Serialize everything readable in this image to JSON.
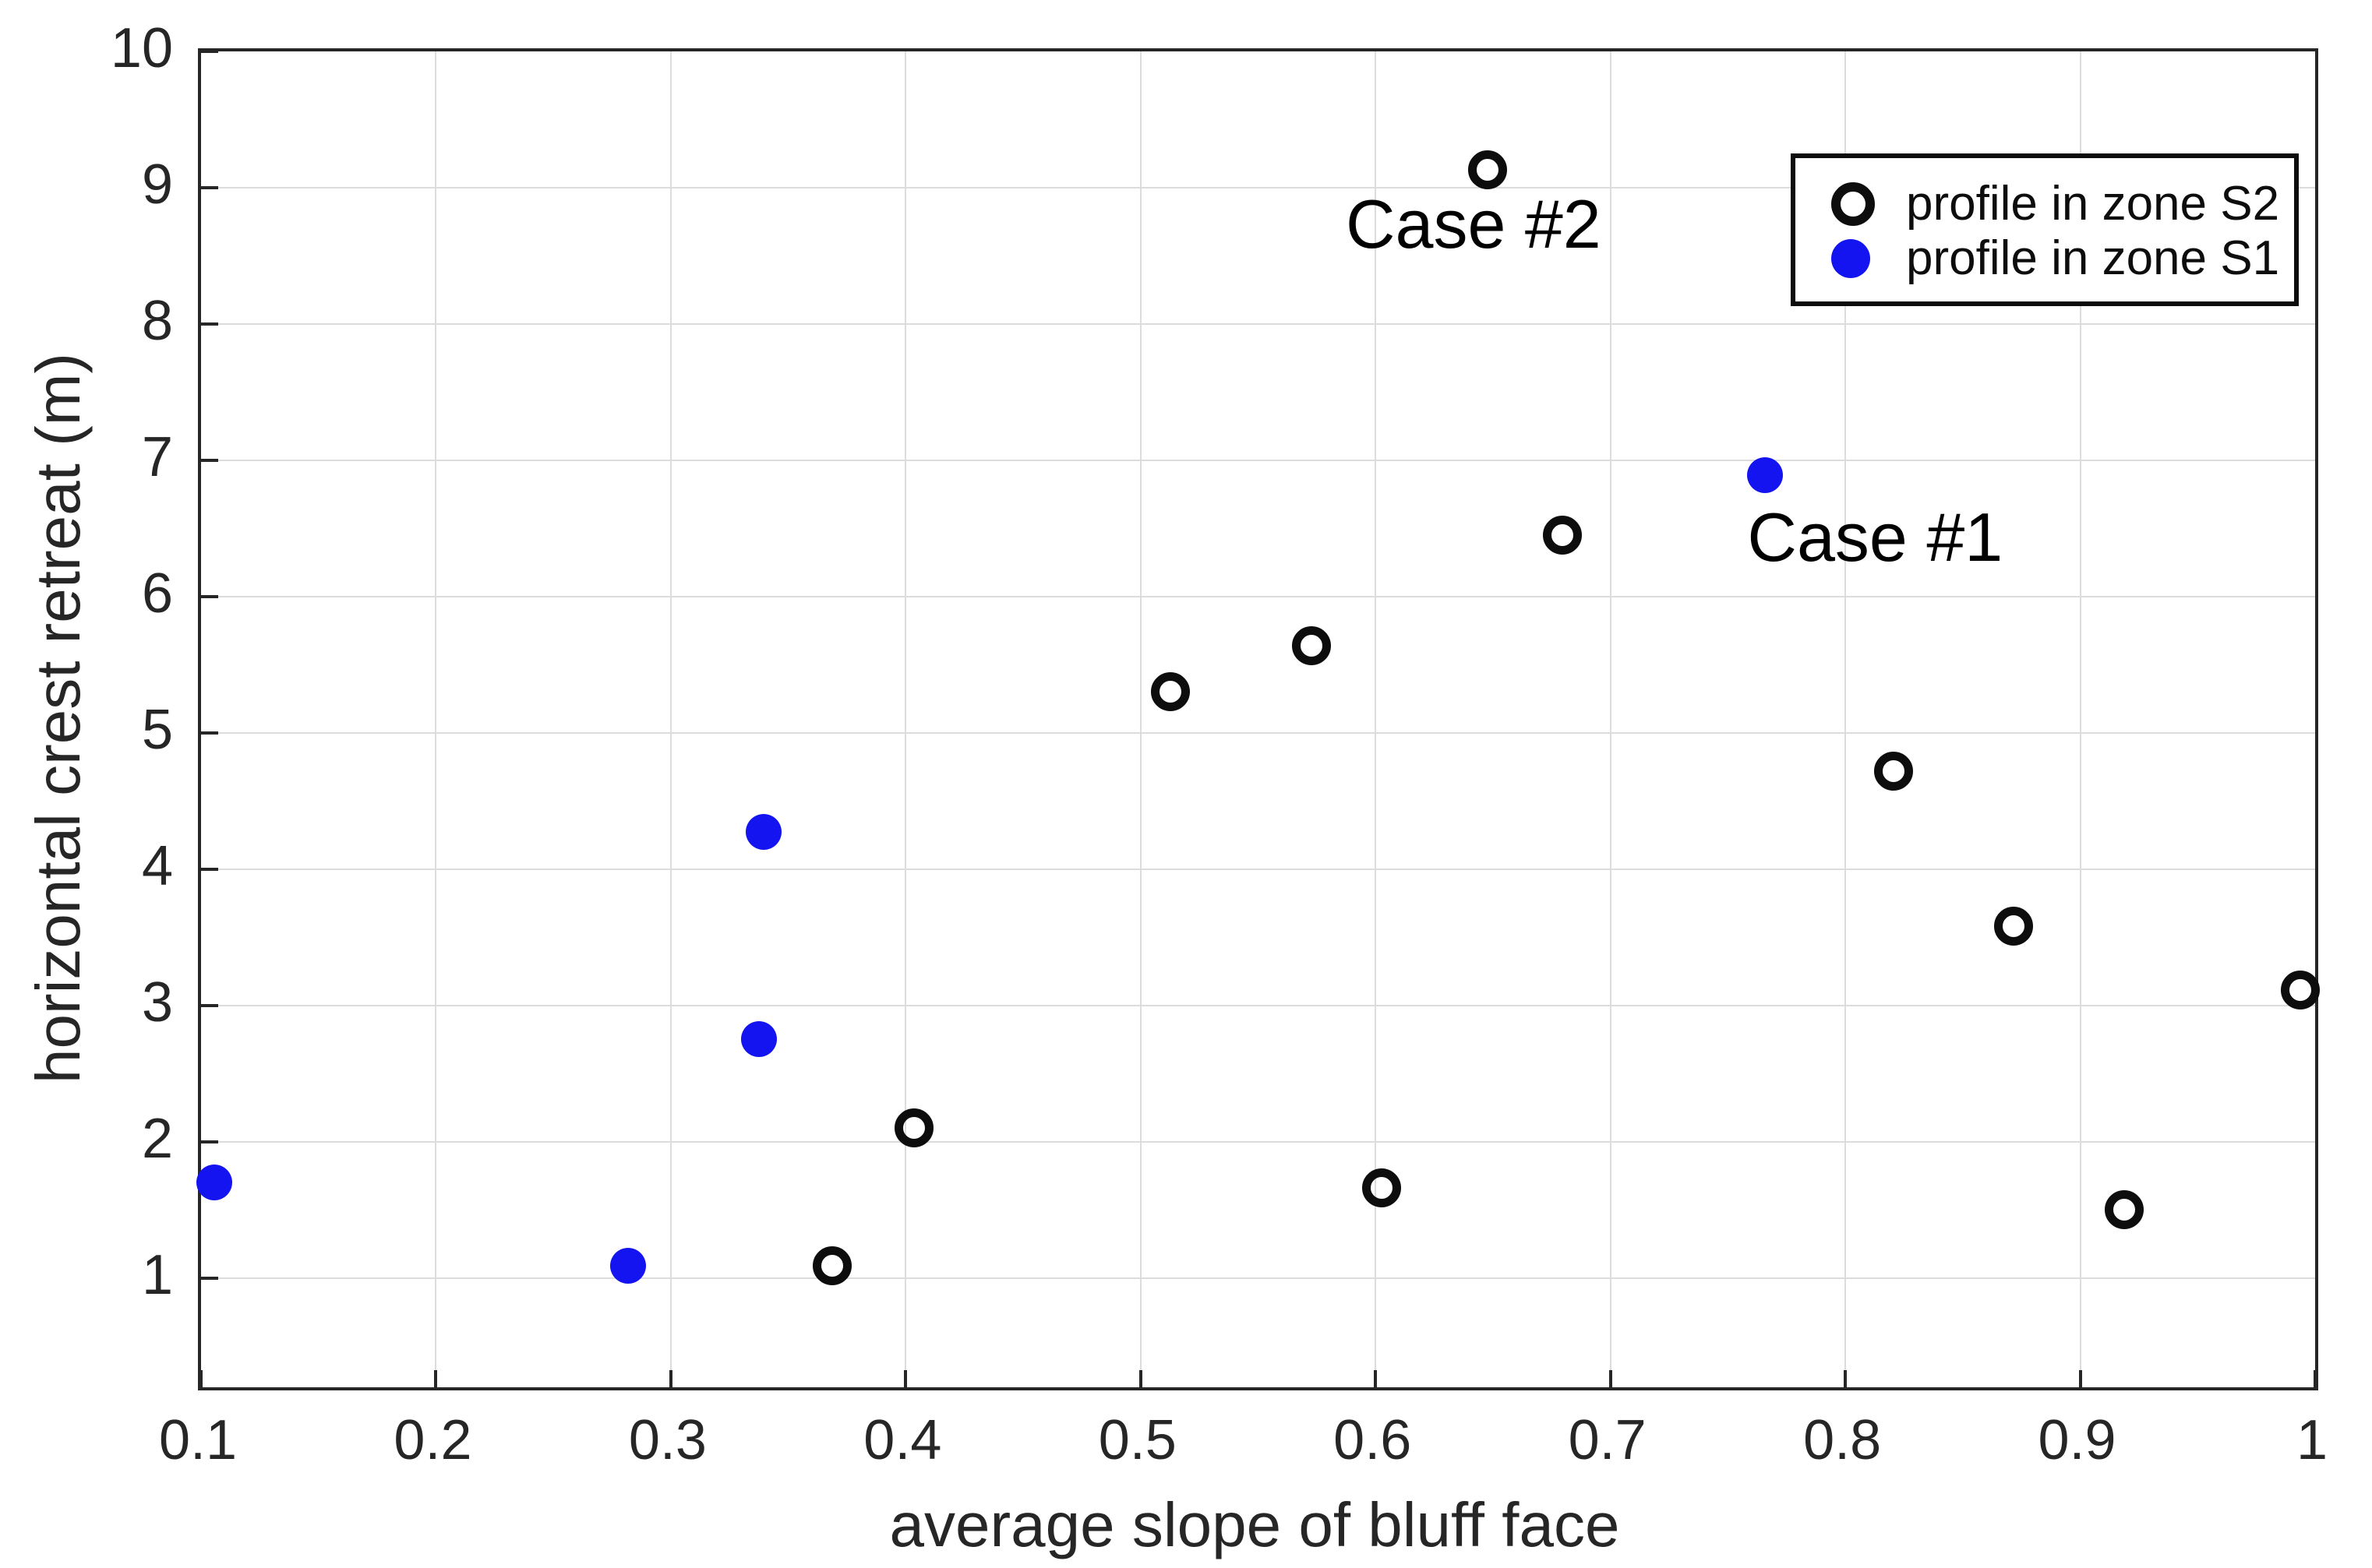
{
  "figure": {
    "background": "#ffffff"
  },
  "chart_data": {
    "type": "scatter",
    "title": "",
    "xlabel": "average slope of bluff face",
    "ylabel": "horizontal crest retreat (m)",
    "xlim": [
      0.1,
      1.0
    ],
    "ylim": [
      0.2,
      10
    ],
    "grid": true,
    "legend_position": "top-right",
    "xticks": [
      0.1,
      0.2,
      0.3,
      0.4,
      0.5,
      0.6,
      0.7,
      0.8,
      0.9,
      1.0
    ],
    "xtick_labels": [
      "0.1",
      "0.2",
      "0.3",
      "0.4",
      "0.5",
      "0.6",
      "0.7",
      "0.8",
      "0.9",
      "1"
    ],
    "yticks": [
      1,
      2,
      3,
      4,
      5,
      6,
      7,
      8,
      9,
      10
    ],
    "ytick_labels": [
      "1",
      "2",
      "3",
      "4",
      "5",
      "6",
      "7",
      "8",
      "9",
      "10"
    ],
    "series": [
      {
        "name": "profile in zone S2",
        "marker": "open-circle",
        "color": "#0d0d0d",
        "points": [
          [
            0.37,
            1.07
          ],
          [
            0.405,
            2.08
          ],
          [
            0.514,
            5.28
          ],
          [
            0.574,
            5.62
          ],
          [
            0.604,
            1.64
          ],
          [
            0.649,
            9.11
          ],
          [
            0.681,
            6.43
          ],
          [
            0.822,
            4.7
          ],
          [
            0.873,
            3.56
          ],
          [
            0.92,
            1.48
          ],
          [
            0.995,
            3.09
          ]
        ]
      },
      {
        "name": "profile in zone S1",
        "marker": "filled-circle",
        "color": "#1414f0",
        "points": [
          [
            0.107,
            1.68
          ],
          [
            0.283,
            1.07
          ],
          [
            0.339,
            2.73
          ],
          [
            0.341,
            4.25
          ],
          [
            0.767,
            6.87
          ]
        ]
      }
    ],
    "annotations": [
      {
        "text": "Case #2",
        "x": 0.643,
        "y": 8.71
      },
      {
        "text": "Case #1",
        "x": 0.814,
        "y": 6.41
      }
    ]
  }
}
